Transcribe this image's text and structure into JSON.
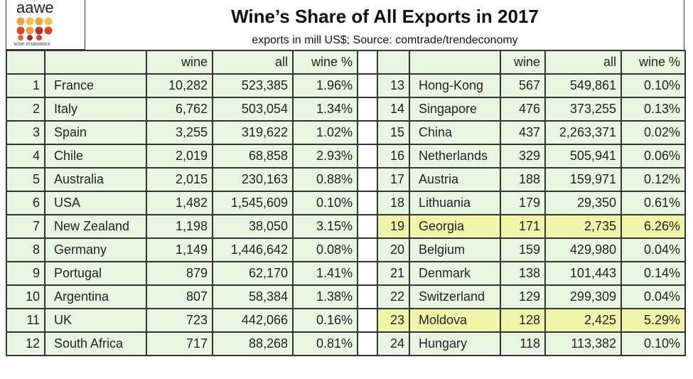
{
  "header": {
    "logo_text": "aawe",
    "logo_subtext": "wine economics",
    "title": "Wine’s Share of All Exports in 2017",
    "subtitle": "exports in mill US$; Source: comtrade/trendeconomy"
  },
  "table": {
    "highlighted_ranks": [
      19,
      23
    ],
    "highlight_color": "#f1f5a9",
    "cell_color": "#e8f6e1",
    "left": {
      "columns": [
        "wine",
        "all",
        "wine %"
      ],
      "rows": [
        [
          1,
          "France",
          "10,282",
          "523,385",
          "1.96%"
        ],
        [
          2,
          "Italy",
          "6,762",
          "503,054",
          "1.34%"
        ],
        [
          3,
          "Spain",
          "3,255",
          "319,622",
          "1.02%"
        ],
        [
          4,
          "Chile",
          "2,019",
          "68,858",
          "2.93%"
        ],
        [
          5,
          "Australia",
          "2,015",
          "230,163",
          "0.88%"
        ],
        [
          6,
          "USA",
          "1,482",
          "1,545,609",
          "0.10%"
        ],
        [
          7,
          "New Zealand",
          "1,198",
          "38,050",
          "3.15%"
        ],
        [
          8,
          "Germany",
          "1,149",
          "1,446,642",
          "0.08%"
        ],
        [
          9,
          "Portugal",
          "879",
          "62,170",
          "1.41%"
        ],
        [
          10,
          "Argentina",
          "807",
          "58,384",
          "1.38%"
        ],
        [
          11,
          "UK",
          "723",
          "442,066",
          "0.16%"
        ],
        [
          12,
          "South Africa",
          "717",
          "88,268",
          "0.81%"
        ]
      ]
    },
    "right": {
      "columns": [
        "wine",
        "all",
        "wine %"
      ],
      "rows": [
        [
          13,
          "Hong-Kong",
          "567",
          "549,861",
          "0.10%"
        ],
        [
          14,
          "Singapore",
          "476",
          "373,255",
          "0.13%"
        ],
        [
          15,
          "China",
          "437",
          "2,263,371",
          "0.02%"
        ],
        [
          16,
          "Netherlands",
          "329",
          "505,941",
          "0.06%"
        ],
        [
          17,
          "Austria",
          "188",
          "159,971",
          "0.12%"
        ],
        [
          18,
          "Lithuania",
          "179",
          "29,350",
          "0.61%"
        ],
        [
          19,
          "Georgia",
          "171",
          "2,735",
          "6.26%"
        ],
        [
          20,
          "Belgium",
          "159",
          "429,980",
          "0.04%"
        ],
        [
          21,
          "Denmark",
          "138",
          "101,443",
          "0.14%"
        ],
        [
          22,
          "Switzerland",
          "129",
          "299,309",
          "0.04%"
        ],
        [
          23,
          "Moldova",
          "128",
          "2,425",
          "5.29%"
        ],
        [
          24,
          "Hungary",
          "118",
          "113,382",
          "0.10%"
        ]
      ]
    }
  }
}
